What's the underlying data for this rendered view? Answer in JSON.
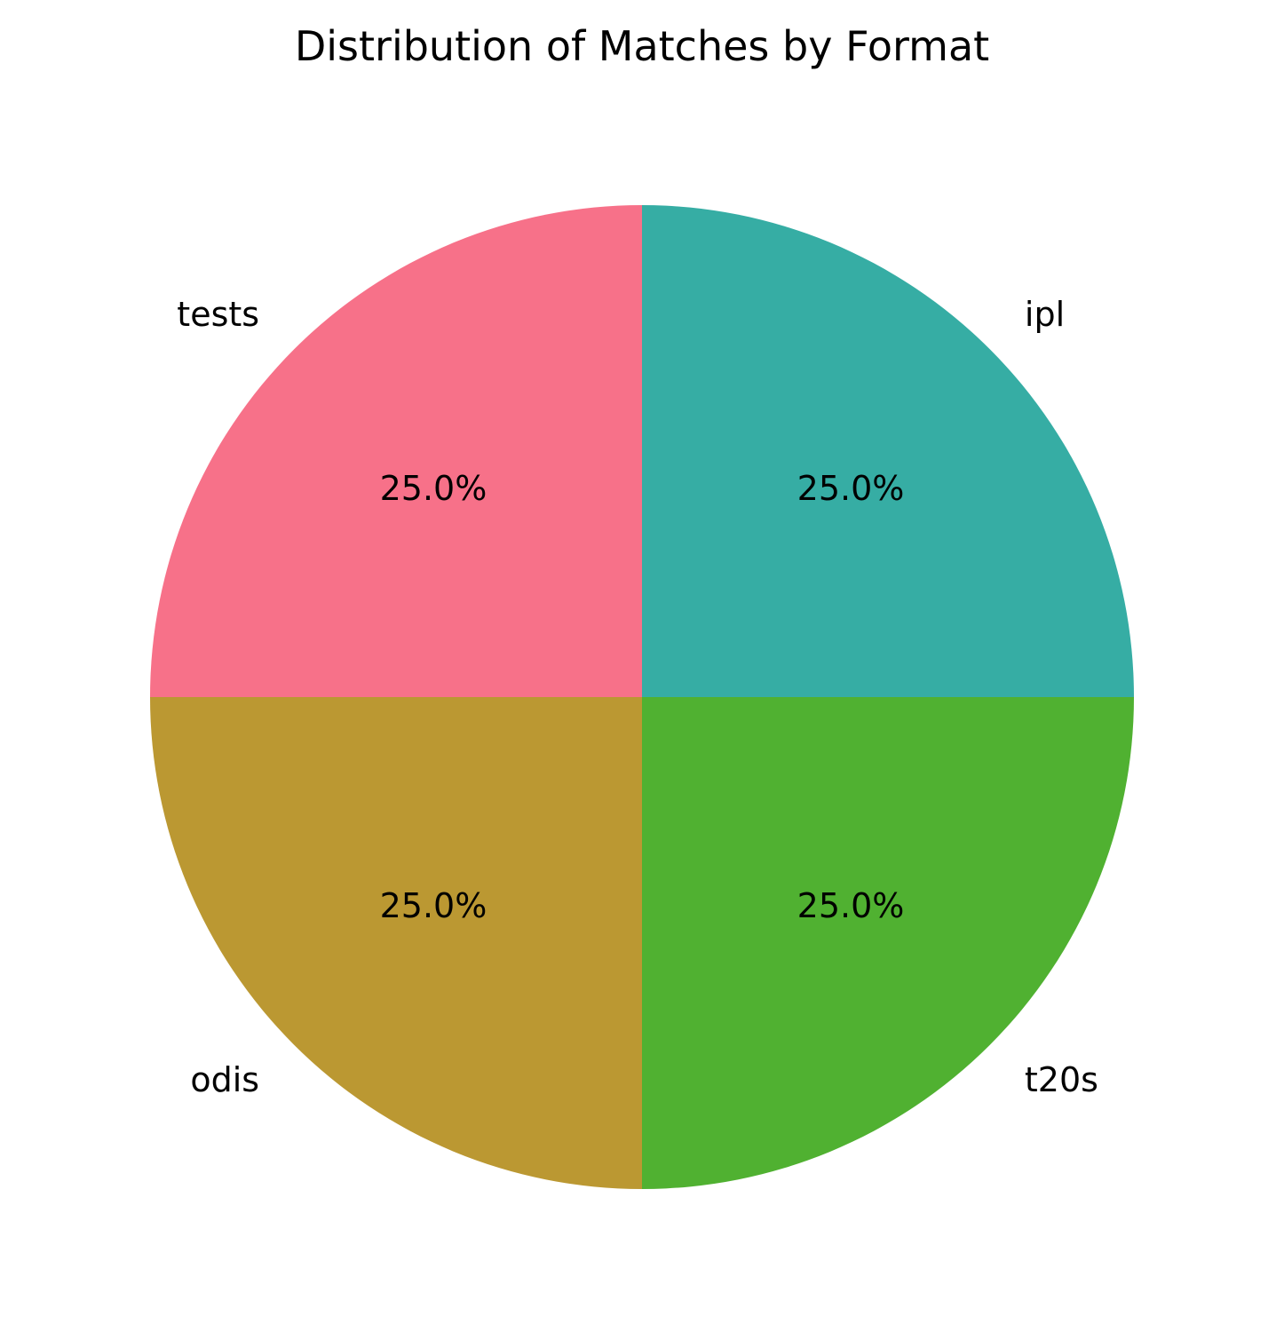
{
  "chart_data": {
    "type": "pie",
    "title": "Distribution of Matches by Format",
    "categories": [
      "tests",
      "odis",
      "t20s",
      "ipl"
    ],
    "values": [
      25.0,
      25.0,
      25.0,
      25.0
    ],
    "percent_labels": [
      "25.0%",
      "25.0%",
      "25.0%",
      "25.0%"
    ],
    "colors": [
      "#f77189",
      "#bb9832",
      "#50b131",
      "#36ada4"
    ],
    "start_angle_deg": 90,
    "direction": "counterclockwise",
    "legend": "none"
  }
}
